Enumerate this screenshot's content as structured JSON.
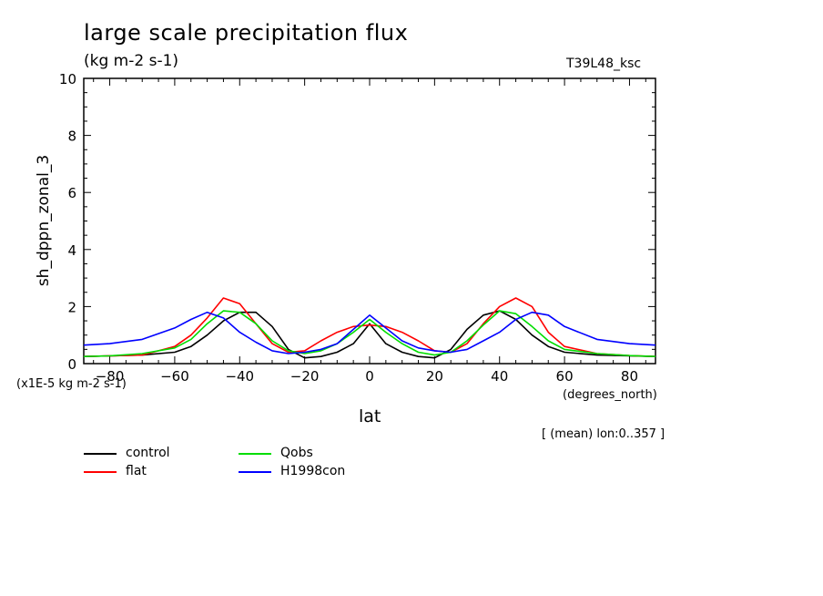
{
  "header": {
    "title": "large scale precipitation flux",
    "units": "(kg m-2 s-1)",
    "tag": "T39L48_ksc"
  },
  "annotations": {
    "y_scale": "(x1E-5 kg m-2 s-1)",
    "x_units": "(degrees_north)",
    "mean_note": "[ (mean) lon:0..357 ]"
  },
  "chart_data": {
    "type": "line",
    "title": "large scale precipitation flux",
    "xlabel": "lat",
    "ylabel": "sh_dppn_zonal_3",
    "xlim": [
      -88,
      88
    ],
    "ylim": [
      0,
      10
    ],
    "xticks": [
      -80,
      -60,
      -40,
      -20,
      0,
      20,
      40,
      60,
      80
    ],
    "yticks": [
      0,
      2,
      4,
      6,
      8,
      10
    ],
    "x": [
      -88,
      -80,
      -70,
      -60,
      -55,
      -50,
      -45,
      -40,
      -35,
      -30,
      -25,
      -20,
      -15,
      -10,
      -5,
      0,
      5,
      10,
      15,
      20,
      25,
      30,
      35,
      40,
      45,
      50,
      55,
      60,
      70,
      80,
      88
    ],
    "series": [
      {
        "name": "control",
        "color": "#000000",
        "values": [
          0.25,
          0.27,
          0.3,
          0.4,
          0.6,
          1.0,
          1.5,
          1.8,
          1.8,
          1.3,
          0.5,
          0.2,
          0.25,
          0.4,
          0.7,
          1.4,
          0.7,
          0.4,
          0.25,
          0.2,
          0.5,
          1.2,
          1.7,
          1.85,
          1.55,
          1.0,
          0.6,
          0.4,
          0.3,
          0.27,
          0.25
        ]
      },
      {
        "name": "flat",
        "color": "#ff0000",
        "values": [
          0.25,
          0.27,
          0.3,
          0.6,
          1.0,
          1.6,
          2.3,
          2.1,
          1.4,
          0.7,
          0.4,
          0.45,
          0.8,
          1.1,
          1.3,
          1.35,
          1.3,
          1.1,
          0.8,
          0.45,
          0.4,
          0.7,
          1.4,
          2.0,
          2.3,
          2.0,
          1.1,
          0.6,
          0.35,
          0.28,
          0.25
        ]
      },
      {
        "name": "Qobs",
        "color": "#00dd00",
        "values": [
          0.25,
          0.27,
          0.35,
          0.55,
          0.85,
          1.4,
          1.85,
          1.8,
          1.4,
          0.8,
          0.45,
          0.35,
          0.45,
          0.7,
          1.1,
          1.55,
          1.1,
          0.7,
          0.4,
          0.3,
          0.4,
          0.8,
          1.35,
          1.85,
          1.75,
          1.3,
          0.8,
          0.5,
          0.35,
          0.28,
          0.25
        ]
      },
      {
        "name": "H1998con",
        "color": "#0000ff",
        "values": [
          0.65,
          0.7,
          0.85,
          1.25,
          1.55,
          1.8,
          1.6,
          1.1,
          0.75,
          0.45,
          0.35,
          0.4,
          0.5,
          0.7,
          1.2,
          1.7,
          1.25,
          0.8,
          0.55,
          0.45,
          0.4,
          0.5,
          0.8,
          1.1,
          1.55,
          1.8,
          1.7,
          1.3,
          0.85,
          0.7,
          0.65
        ]
      }
    ],
    "legend_position": "bottom-left",
    "grid": false
  }
}
